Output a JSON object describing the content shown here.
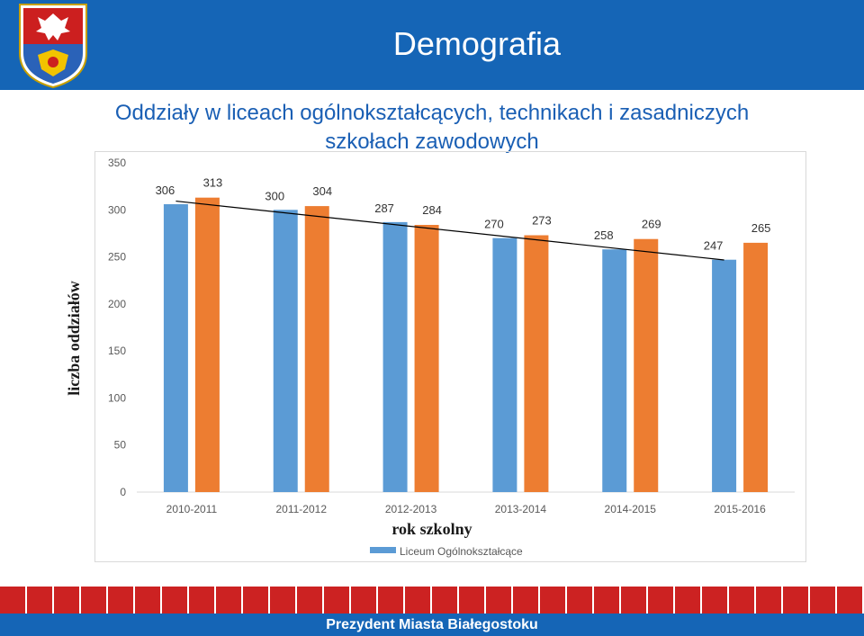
{
  "header": {
    "title": "Demografia"
  },
  "slide": {
    "title_line1": "Oddziały w liceach ogólnokształcących, technikach i zasadniczych",
    "title_line2": "szkołach zawodowych"
  },
  "chart_data": {
    "type": "bar",
    "categories": [
      "2010-2011",
      "2011-2012",
      "2012-2013",
      "2013-2014",
      "2014-2015",
      "2015-2016"
    ],
    "series": [
      {
        "name": "Liceum Ogólnokształcące",
        "color": "#5b9bd5",
        "values": [
          306,
          300,
          287,
          270,
          258,
          247
        ]
      },
      {
        "name": "",
        "color": "#ed7d31",
        "values": [
          313,
          304,
          284,
          273,
          269,
          265
        ]
      }
    ],
    "trendline": {
      "series_index": 0,
      "type": "linear",
      "color": "#000000"
    },
    "ylim": [
      0,
      350
    ],
    "yticks": [
      0,
      50,
      100,
      150,
      200,
      250,
      300,
      350
    ],
    "ylabel": "liczba oddziałów",
    "xlabel": "rok szkolny",
    "legend_position": "bottom",
    "gridlines": false
  },
  "footer": {
    "text": "Prezydent Miasta Białegostoku"
  }
}
